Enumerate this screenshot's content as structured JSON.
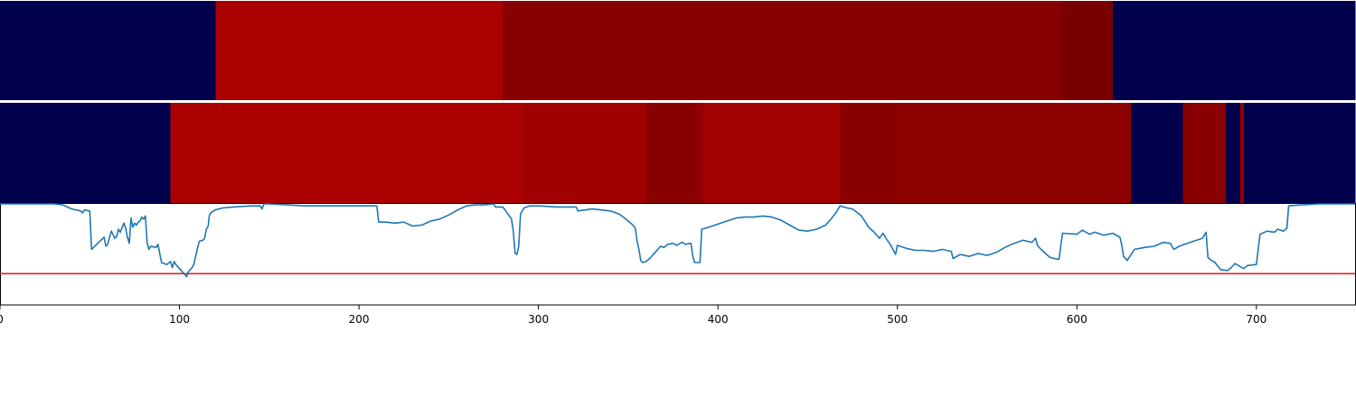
{
  "chart_data": [
    {
      "type": "heatmap",
      "track": "top-band",
      "x_range": [
        0,
        755
      ],
      "segments": [
        {
          "start": 0,
          "end": 120,
          "color": "#00004c"
        },
        {
          "start": 120,
          "end": 280,
          "color": "#ab0000"
        },
        {
          "start": 280,
          "end": 590,
          "color": "#880000"
        },
        {
          "start": 590,
          "end": 620,
          "color": "#790000"
        },
        {
          "start": 620,
          "end": 755,
          "color": "#00004c"
        }
      ]
    },
    {
      "type": "heatmap",
      "track": "middle-band",
      "x_range": [
        0,
        755
      ],
      "segments": [
        {
          "start": 0,
          "end": 95,
          "color": "#00004c"
        },
        {
          "start": 95,
          "end": 291,
          "color": "#ab0000"
        },
        {
          "start": 291,
          "end": 360,
          "color": "#a00000"
        },
        {
          "start": 360,
          "end": 388,
          "color": "#880000"
        },
        {
          "start": 388,
          "end": 392,
          "color": "#920000"
        },
        {
          "start": 392,
          "end": 468,
          "color": "#a30000"
        },
        {
          "start": 468,
          "end": 499,
          "color": "#880000"
        },
        {
          "start": 499,
          "end": 630,
          "color": "#8c0000"
        },
        {
          "start": 630,
          "end": 659,
          "color": "#00004c"
        },
        {
          "start": 659,
          "end": 683,
          "color": "#880000"
        },
        {
          "start": 683,
          "end": 691,
          "color": "#00004c"
        },
        {
          "start": 691,
          "end": 693,
          "color": "#9a0000"
        },
        {
          "start": 693,
          "end": 755,
          "color": "#00004c"
        }
      ]
    },
    {
      "type": "line",
      "xlim": [
        0,
        755
      ],
      "ylim": [
        0,
        1
      ],
      "xticks": [
        "0",
        "100",
        "200",
        "300",
        "400",
        "500",
        "600",
        "700"
      ],
      "xtick_values": [
        0,
        100,
        200,
        300,
        400,
        500,
        600,
        700
      ],
      "threshold": {
        "y": 0.31,
        "color": "#d62728"
      },
      "series": [
        {
          "color": "#1f77b4",
          "points": [
            [
              0,
              1.0
            ],
            [
              30,
              1.0
            ],
            [
              35,
              0.99
            ],
            [
              40,
              0.95
            ],
            [
              45,
              0.93
            ],
            [
              46,
              0.91
            ],
            [
              47,
              0.94
            ],
            [
              50,
              0.93
            ],
            [
              51,
              0.55
            ],
            [
              55,
              0.62
            ],
            [
              58,
              0.67
            ],
            [
              59,
              0.58
            ],
            [
              60,
              0.6
            ],
            [
              62,
              0.73
            ],
            [
              64,
              0.66
            ],
            [
              65,
              0.68
            ],
            [
              66,
              0.75
            ],
            [
              67,
              0.72
            ],
            [
              69,
              0.81
            ],
            [
              70,
              0.76
            ],
            [
              71,
              0.67
            ],
            [
              72,
              0.61
            ],
            [
              73,
              0.86
            ],
            [
              74,
              0.77
            ],
            [
              75,
              0.81
            ],
            [
              76,
              0.79
            ],
            [
              77,
              0.82
            ],
            [
              78,
              0.83
            ],
            [
              79,
              0.87
            ],
            [
              80,
              0.85
            ],
            [
              81,
              0.88
            ],
            [
              82,
              0.61
            ],
            [
              83,
              0.55
            ],
            [
              84,
              0.58
            ],
            [
              87,
              0.57
            ],
            [
              88,
              0.6
            ],
            [
              90,
              0.42
            ],
            [
              93,
              0.4
            ],
            [
              95,
              0.43
            ],
            [
              96,
              0.37
            ],
            [
              97,
              0.43
            ],
            [
              98,
              0.4
            ],
            [
              100,
              0.36
            ],
            [
              103,
              0.3
            ],
            [
              104,
              0.28
            ],
            [
              105,
              0.33
            ],
            [
              107,
              0.37
            ],
            [
              108,
              0.4
            ],
            [
              110,
              0.56
            ],
            [
              111,
              0.63
            ],
            [
              113,
              0.64
            ],
            [
              114,
              0.66
            ],
            [
              115,
              0.75
            ],
            [
              116,
              0.78
            ],
            [
              116.5,
              0.87
            ],
            [
              117,
              0.9
            ],
            [
              118,
              0.92
            ],
            [
              120,
              0.94
            ],
            [
              124,
              0.96
            ],
            [
              130,
              0.97
            ],
            [
              140,
              0.98
            ],
            [
              145,
              0.98
            ],
            [
              146,
              0.95
            ],
            [
              147,
              1.0
            ],
            [
              150,
              1.0
            ],
            [
              160,
              0.99
            ],
            [
              170,
              0.98
            ],
            [
              185,
              0.98
            ],
            [
              200,
              0.98
            ],
            [
              210,
              0.98
            ],
            [
              211,
              0.82
            ],
            [
              215,
              0.82
            ],
            [
              220,
              0.81
            ],
            [
              225,
              0.82
            ],
            [
              230,
              0.78
            ],
            [
              235,
              0.79
            ],
            [
              240,
              0.83
            ],
            [
              245,
              0.85
            ],
            [
              250,
              0.89
            ],
            [
              255,
              0.94
            ],
            [
              260,
              0.98
            ],
            [
              265,
              0.99
            ],
            [
              270,
              0.99
            ],
            [
              275,
              1.0
            ],
            [
              276,
              0.97
            ],
            [
              280,
              0.97
            ],
            [
              281,
              0.95
            ],
            [
              285,
              0.85
            ],
            [
              286,
              0.73
            ],
            [
              287,
              0.51
            ],
            [
              288,
              0.5
            ],
            [
              289,
              0.58
            ],
            [
              290,
              0.9
            ],
            [
              292,
              0.96
            ],
            [
              295,
              0.98
            ],
            [
              300,
              0.98
            ],
            [
              310,
              0.97
            ],
            [
              321,
              0.97
            ],
            [
              322,
              0.93
            ],
            [
              330,
              0.95
            ],
            [
              340,
              0.93
            ],
            [
              345,
              0.9
            ],
            [
              348,
              0.86
            ],
            [
              352,
              0.8
            ],
            [
              354,
              0.76
            ],
            [
              355,
              0.63
            ],
            [
              356,
              0.55
            ],
            [
              357,
              0.44
            ],
            [
              358,
              0.42
            ],
            [
              360,
              0.43
            ],
            [
              362,
              0.46
            ],
            [
              365,
              0.52
            ],
            [
              368,
              0.58
            ],
            [
              370,
              0.57
            ],
            [
              372,
              0.6
            ],
            [
              375,
              0.61
            ],
            [
              377,
              0.59
            ],
            [
              380,
              0.62
            ],
            [
              382,
              0.6
            ],
            [
              385,
              0.61
            ],
            [
              386,
              0.48
            ],
            [
              387,
              0.42
            ],
            [
              390,
              0.42
            ],
            [
              391,
              0.75
            ],
            [
              395,
              0.77
            ],
            [
              400,
              0.8
            ],
            [
              405,
              0.83
            ],
            [
              410,
              0.86
            ],
            [
              415,
              0.87
            ],
            [
              420,
              0.87
            ],
            [
              425,
              0.88
            ],
            [
              430,
              0.87
            ],
            [
              435,
              0.84
            ],
            [
              440,
              0.79
            ],
            [
              445,
              0.74
            ],
            [
              450,
              0.73
            ],
            [
              455,
              0.75
            ],
            [
              460,
              0.79
            ],
            [
              463,
              0.85
            ],
            [
              466,
              0.92
            ],
            [
              468,
              0.98
            ],
            [
              472,
              0.96
            ],
            [
              475,
              0.95
            ],
            [
              480,
              0.88
            ],
            [
              484,
              0.77
            ],
            [
              487,
              0.72
            ],
            [
              490,
              0.66
            ],
            [
              492,
              0.71
            ],
            [
              494,
              0.65
            ],
            [
              496,
              0.6
            ],
            [
              499,
              0.5
            ],
            [
              500,
              0.59
            ],
            [
              505,
              0.56
            ],
            [
              510,
              0.54
            ],
            [
              515,
              0.54
            ],
            [
              520,
              0.53
            ],
            [
              525,
              0.55
            ],
            [
              530,
              0.53
            ],
            [
              531,
              0.46
            ],
            [
              535,
              0.5
            ],
            [
              540,
              0.48
            ],
            [
              545,
              0.51
            ],
            [
              550,
              0.49
            ],
            [
              555,
              0.52
            ],
            [
              560,
              0.57
            ],
            [
              565,
              0.61
            ],
            [
              570,
              0.64
            ],
            [
              575,
              0.62
            ],
            [
              577,
              0.66
            ],
            [
              578,
              0.59
            ],
            [
              580,
              0.55
            ],
            [
              585,
              0.47
            ],
            [
              590,
              0.45
            ],
            [
              592,
              0.71
            ],
            [
              600,
              0.7
            ],
            [
              603,
              0.74
            ],
            [
              607,
              0.7
            ],
            [
              610,
              0.72
            ],
            [
              615,
              0.69
            ],
            [
              620,
              0.71
            ],
            [
              624,
              0.67
            ],
            [
              625,
              0.59
            ],
            [
              626,
              0.48
            ],
            [
              628,
              0.44
            ],
            [
              632,
              0.55
            ],
            [
              635,
              0.56
            ],
            [
              638,
              0.57
            ],
            [
              643,
              0.58
            ],
            [
              648,
              0.62
            ],
            [
              652,
              0.61
            ],
            [
              654,
              0.55
            ],
            [
              657,
              0.58
            ],
            [
              660,
              0.6
            ],
            [
              665,
              0.63
            ],
            [
              670,
              0.66
            ],
            [
              672,
              0.72
            ],
            [
              673,
              0.47
            ],
            [
              675,
              0.44
            ],
            [
              677,
              0.42
            ],
            [
              680,
              0.35
            ],
            [
              684,
              0.34
            ],
            [
              686,
              0.37
            ],
            [
              688,
              0.41
            ],
            [
              690,
              0.39
            ],
            [
              693,
              0.36
            ],
            [
              695,
              0.39
            ],
            [
              700,
              0.4
            ],
            [
              702,
              0.7
            ],
            [
              706,
              0.73
            ],
            [
              710,
              0.72
            ],
            [
              712,
              0.75
            ],
            [
              715,
              0.73
            ],
            [
              717,
              0.76
            ],
            [
              718,
              0.98
            ],
            [
              725,
              0.99
            ],
            [
              735,
              1.0
            ],
            [
              755,
              1.0
            ]
          ]
        }
      ]
    }
  ]
}
